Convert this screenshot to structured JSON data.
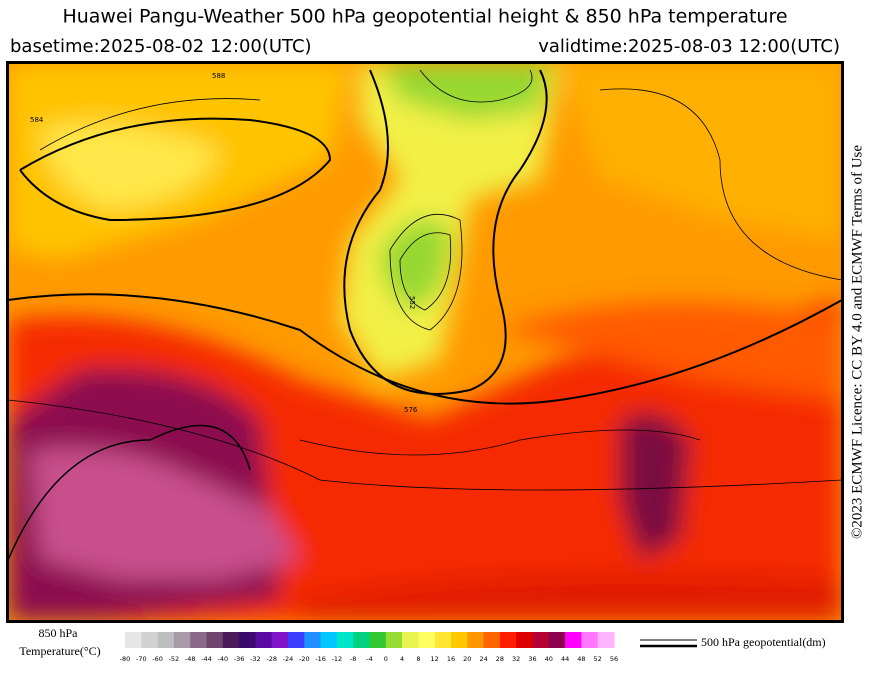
{
  "header": {
    "title": "Huawei Pangu-Weather 500 hPa geopotential height & 850 hPa temperature",
    "basetime": "basetime:2025-08-02 12:00(UTC)",
    "validtime": "validtime:2025-08-03 12:00(UTC)"
  },
  "credit": "©2023 ECMWF Licence: CC BY 4.0 and ECMWF Terms of Use",
  "map": {
    "contour_labels": [
      "552",
      "576",
      "584",
      "588"
    ]
  },
  "colorbar": {
    "title_line1": "850 hPa",
    "title_line2": "Temperature(°C)",
    "ticks": [
      -80,
      -70,
      -60,
      -52,
      -48,
      -44,
      -40,
      -36,
      -32,
      -28,
      -24,
      -20,
      -16,
      -12,
      -8,
      -4,
      0,
      4,
      8,
      12,
      16,
      20,
      24,
      28,
      32,
      36,
      40,
      44,
      48,
      52,
      56
    ],
    "colors": [
      "#e6e6e6",
      "#d2d2d2",
      "#bebebe",
      "#a89aa8",
      "#8a6a8a",
      "#6e466e",
      "#4a1a5a",
      "#3c0a6e",
      "#5a0aa0",
      "#8214c8",
      "#3c3cff",
      "#1e90ff",
      "#00c8ff",
      "#00e6c8",
      "#00d282",
      "#32c832",
      "#96dc32",
      "#e6f550",
      "#ffff64",
      "#ffe632",
      "#ffc800",
      "#ff9600",
      "#ff6400",
      "#ff1e00",
      "#dc0000",
      "#b40032",
      "#8c0050",
      "#ff00ff",
      "#ff78ff",
      "#ffb4ff",
      "#f0dcf0"
    ]
  },
  "legend": {
    "label": "500 hPa geopotential(dm)"
  }
}
